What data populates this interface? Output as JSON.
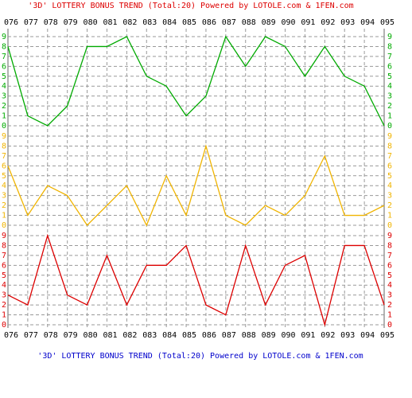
{
  "chart_data": {
    "type": "line",
    "title": "'3D' LOTTERY BONUS TREND (Total:20)  Powered by LOTOLE.com & 1FEN.com",
    "categories": [
      "076",
      "077",
      "078",
      "079",
      "080",
      "081",
      "082",
      "083",
      "084",
      "085",
      "086",
      "087",
      "088",
      "089",
      "090",
      "091",
      "092",
      "093",
      "094",
      "095"
    ],
    "series": [
      {
        "color": "#00aa00",
        "values": [
          8,
          1,
          0,
          2,
          8,
          8,
          9,
          5,
          4,
          1,
          3,
          9,
          6,
          9,
          8,
          5,
          8,
          5,
          4,
          0
        ]
      },
      {
        "color": "#f0b400",
        "values": [
          6,
          1,
          4,
          3,
          0,
          2,
          4,
          0,
          5,
          1,
          8,
          1,
          0,
          2,
          1,
          3,
          7,
          1,
          1,
          2
        ]
      },
      {
        "color": "#dd0000",
        "values": [
          3,
          2,
          9,
          3,
          2,
          7,
          2,
          6,
          6,
          8,
          2,
          1,
          8,
          2,
          6,
          7,
          0,
          8,
          8,
          2
        ]
      }
    ],
    "ylim": [
      0,
      9
    ],
    "yticks": [
      0,
      1,
      2,
      3,
      4,
      5,
      6,
      7,
      8,
      9
    ],
    "grid": true
  }
}
